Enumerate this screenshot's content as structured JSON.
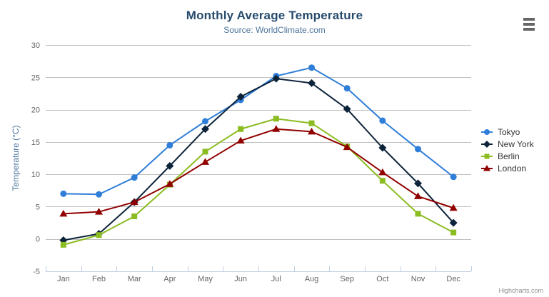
{
  "chart_data": {
    "type": "line",
    "title": "Monthly Average Temperature",
    "subtitle": "Source: WorldClimate.com",
    "xlabel": "",
    "ylabel": "Temperature (°C)",
    "ylim": [
      -5,
      30
    ],
    "yticks": [
      -5,
      0,
      5,
      10,
      15,
      20,
      25,
      30
    ],
    "grid": true,
    "legend_position": "right",
    "credit": "Highcharts.com",
    "categories": [
      "Jan",
      "Feb",
      "Mar",
      "Apr",
      "May",
      "Jun",
      "Jul",
      "Aug",
      "Sep",
      "Oct",
      "Nov",
      "Dec"
    ],
    "series": [
      {
        "name": "Tokyo",
        "marker": "circle",
        "color": "#2f7ed8",
        "values": [
          7.0,
          6.9,
          9.5,
          14.5,
          18.2,
          21.5,
          25.2,
          26.5,
          23.3,
          18.3,
          13.9,
          9.6
        ]
      },
      {
        "name": "New York",
        "marker": "diamond",
        "color": "#0d233a",
        "values": [
          -0.2,
          0.8,
          5.7,
          11.3,
          17.0,
          22.0,
          24.8,
          24.1,
          20.1,
          14.1,
          8.6,
          2.5
        ]
      },
      {
        "name": "Berlin",
        "marker": "square",
        "color": "#8bbc21",
        "values": [
          -0.9,
          0.6,
          3.5,
          8.4,
          13.5,
          17.0,
          18.6,
          17.9,
          14.3,
          9.0,
          3.9,
          1.0
        ]
      },
      {
        "name": "London",
        "marker": "triangle",
        "color": "#910000",
        "values": [
          3.9,
          4.2,
          5.7,
          8.5,
          11.9,
          15.2,
          17.0,
          16.6,
          14.2,
          10.3,
          6.6,
          4.8
        ]
      }
    ]
  },
  "style_colors": {
    "title": "#274b6d",
    "subtitle": "#4d759e",
    "axis_label": "#666666",
    "axis_title": "#4d759e",
    "grid_line": "#c0c0c0",
    "axis_line": "#c0d0e0",
    "legend_text": "#333333",
    "credit": "#909090",
    "menu_icon": "#666666"
  },
  "menu": {
    "icon": "hamburger-icon"
  }
}
